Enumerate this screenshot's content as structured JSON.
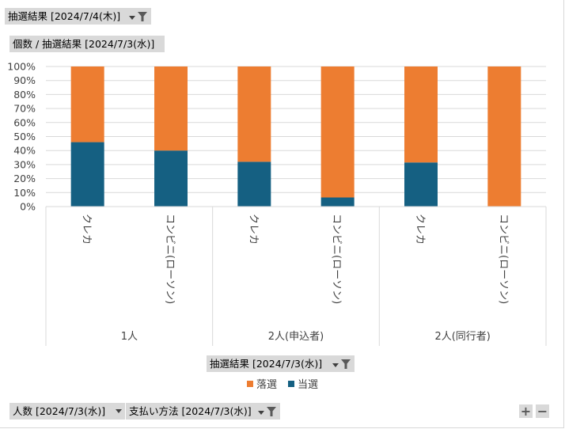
{
  "filters": {
    "top_filter": "抽選結果 [2024/7/4(木)]",
    "value_field": "個数 / 抽選結果 [2024/7/3(水)]",
    "legend_field": "抽選結果 [2024/7/3(水)]",
    "axis_field_1": "人数 [2024/7/3(水)]",
    "axis_field_2": "支払い方法 [2024/7/3(水)]"
  },
  "zoom": {
    "plus": "+",
    "minus": "−"
  },
  "colors": {
    "落選": "#ED7D31",
    "当選": "#156082"
  },
  "chart_data": {
    "type": "bar",
    "stacked": "percent",
    "groups": [
      {
        "label": "1人",
        "categories": [
          "クレカ",
          "コンビニ(ローソン)"
        ]
      },
      {
        "label": "2人(申込者)",
        "categories": [
          "クレカ",
          "コンビニ(ローソン)"
        ]
      },
      {
        "label": "2人(同行者)",
        "categories": [
          "クレカ",
          "コンビニ(ローソン)"
        ]
      }
    ],
    "series": [
      {
        "name": "当選",
        "values": [
          46,
          40,
          32,
          6.5,
          31.5,
          0
        ]
      },
      {
        "name": "落選",
        "values": [
          54,
          60,
          68,
          93.5,
          68.5,
          100
        ]
      }
    ],
    "legend_order": [
      "落選",
      "当選"
    ],
    "yticks": [
      "0%",
      "10%",
      "20%",
      "30%",
      "40%",
      "50%",
      "60%",
      "70%",
      "80%",
      "90%",
      "100%"
    ],
    "ylim": [
      0,
      100
    ],
    "grid": true,
    "legend_position": "bottom"
  }
}
